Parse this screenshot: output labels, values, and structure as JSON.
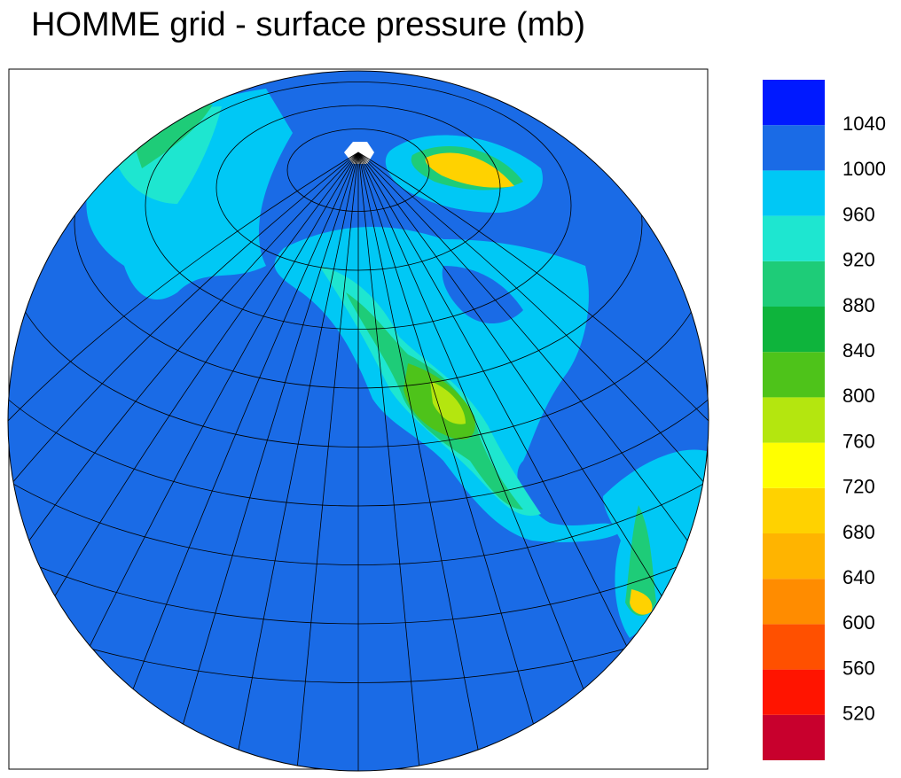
{
  "title": "HOMME grid - surface pressure (mb)",
  "colorbar": {
    "levels": [
      520,
      560,
      600,
      640,
      680,
      720,
      760,
      800,
      840,
      880,
      920,
      960,
      1000,
      1040
    ],
    "colors": [
      "#c8002d",
      "#ff1400",
      "#ff5000",
      "#ff8c00",
      "#ffb400",
      "#ffd200",
      "#ffff00",
      "#b4e60f",
      "#4ec31a",
      "#0eb43c",
      "#1ecc78",
      "#1ee6d0",
      "#00c8f5",
      "#1a6be6",
      "#0019ff"
    ]
  }
}
